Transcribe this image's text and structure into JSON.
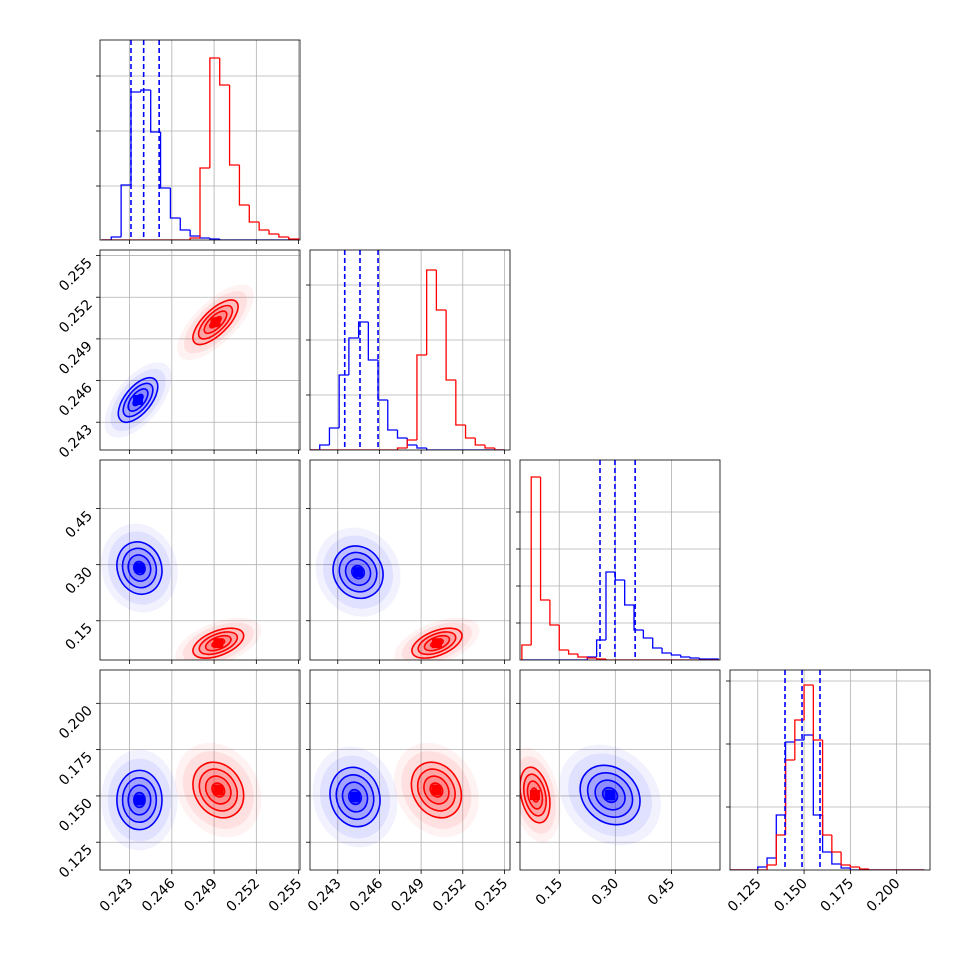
{
  "chart_data": [
    {
      "type": "histogram",
      "bins": [
        0.241,
        0.2417,
        0.2424,
        0.2431,
        0.2438,
        0.2445,
        0.2452,
        0.2459,
        0.2466,
        0.2473,
        0.248,
        0.2487,
        0.2494,
        0.2501,
        0.2508,
        0.2515,
        0.2522,
        0.2529,
        0.2536,
        0.2543,
        0.255
      ],
      "series": [
        {
          "color": "#0000ff",
          "values": [
            0,
            3,
            55,
            148,
            150,
            108,
            52,
            22,
            10,
            4,
            2,
            1,
            0,
            0,
            0,
            0,
            0,
            0,
            0,
            0
          ]
        },
        {
          "color": "#ff0000",
          "values": [
            0,
            0,
            0,
            0,
            0,
            0,
            0,
            0,
            0,
            2,
            72,
            182,
            155,
            75,
            35,
            18,
            10,
            6,
            3,
            1
          ]
        }
      ],
      "quantiles": [
        0.2431,
        0.244,
        0.2451
      ],
      "quantile_color": "#0000ff",
      "xlim": [
        0.2409,
        0.2551
      ],
      "xticks": [
        0.243,
        0.246,
        0.249,
        0.252,
        0.255
      ],
      "ylim": [
        0,
        200
      ],
      "yticks": [
        54,
        109,
        164
      ],
      "grid": true,
      "show_xtick_labels": false,
      "show_ytick_labels": false
    },
    {
      "type": "contour",
      "levels": [
        0.5,
        1,
        1.5,
        2
      ],
      "series": [
        {
          "color": "#0000ff",
          "center": [
            0.2436,
            0.2446
          ],
          "sigma": [
            0.0007,
            0.0008
          ],
          "corr": 0.6
        },
        {
          "color": "#ff0000",
          "center": [
            0.2491,
            0.2502
          ],
          "sigma": [
            0.0008,
            0.0008
          ],
          "corr": 0.7
        }
      ],
      "xlim": [
        0.2409,
        0.2551
      ],
      "xticks": [
        0.243,
        0.246,
        0.249,
        0.252,
        0.255
      ],
      "ylim": [
        0.241,
        0.2554
      ],
      "yticks": [
        0.243,
        0.246,
        0.249,
        0.252,
        0.255
      ],
      "grid": true,
      "show_xtick_labels": false,
      "show_ytick_labels": true
    },
    {
      "type": "histogram",
      "bins": [
        0.241,
        0.2417,
        0.2424,
        0.2431,
        0.2438,
        0.2445,
        0.2452,
        0.2459,
        0.2466,
        0.2473,
        0.248,
        0.2487,
        0.2494,
        0.2501,
        0.2508,
        0.2515,
        0.2522,
        0.2529,
        0.2536,
        0.2543,
        0.255
      ],
      "series": [
        {
          "color": "#0000ff",
          "values": [
            0,
            5,
            22,
            75,
            112,
            128,
            90,
            50,
            20,
            12,
            5,
            2,
            0,
            0,
            0,
            0,
            0,
            0,
            0,
            0
          ]
        },
        {
          "color": "#ff0000",
          "values": [
            0,
            0,
            0,
            0,
            0,
            0,
            0,
            0,
            0,
            2,
            10,
            95,
            180,
            140,
            70,
            25,
            12,
            5,
            2,
            0
          ]
        }
      ],
      "quantiles": [
        0.2435,
        0.2446,
        0.2459
      ],
      "quantile_color": "#0000ff",
      "xlim": [
        0.241,
        0.2554
      ],
      "xticks": [
        0.243,
        0.246,
        0.249,
        0.252,
        0.255
      ],
      "ylim": [
        0,
        200
      ],
      "yticks": [
        55,
        110,
        165
      ],
      "grid": true,
      "show_xtick_labels": false,
      "show_ytick_labels": false
    },
    {
      "type": "contour",
      "levels": [
        0.5,
        1,
        1.5,
        2
      ],
      "series": [
        {
          "color": "#0000ff",
          "center": [
            0.2437,
            0.291
          ],
          "sigma": [
            0.0008,
            0.035
          ],
          "corr": -0.1
        },
        {
          "color": "#ff0000",
          "center": [
            0.2493,
            0.09
          ],
          "sigma": [
            0.0009,
            0.02
          ],
          "corr": 0.5
        }
      ],
      "xlim": [
        0.2409,
        0.2551
      ],
      "xticks": [
        0.243,
        0.246,
        0.249,
        0.252,
        0.255
      ],
      "ylim": [
        0.045,
        0.58
      ],
      "yticks": [
        0.15,
        {
          "value": 0.3,
          "label": "0.30"
        },
        0.45
      ],
      "grid": true,
      "show_xtick_labels": false,
      "show_ytick_labels": true
    },
    {
      "type": "contour",
      "levels": [
        0.5,
        1,
        1.5,
        2
      ],
      "series": [
        {
          "color": "#0000ff",
          "center": [
            0.24446,
            0.28
          ],
          "sigma": [
            0.0009,
            0.035
          ],
          "corr": -0.1
        },
        {
          "color": "#ff0000",
          "center": [
            0.25014,
            0.09
          ],
          "sigma": [
            0.0009,
            0.02
          ],
          "corr": 0.5
        }
      ],
      "xlim": [
        0.241,
        0.2554
      ],
      "xticks": [
        0.243,
        0.246,
        0.249,
        0.252,
        0.255
      ],
      "ylim": [
        0.045,
        0.58
      ],
      "yticks": [
        0.15,
        {
          "value": 0.3,
          "label": "0.30"
        },
        0.45
      ],
      "grid": true,
      "show_xtick_labels": false,
      "show_ytick_labels": false
    },
    {
      "type": "histogram",
      "bins": [
        0.05,
        0.075,
        0.1,
        0.125,
        0.15,
        0.175,
        0.2,
        0.225,
        0.25,
        0.275,
        0.3,
        0.325,
        0.35,
        0.375,
        0.4,
        0.425,
        0.45,
        0.475,
        0.5,
        0.525,
        0.55,
        0.575
      ],
      "series": [
        {
          "color": "#0000ff",
          "values": [
            0,
            0,
            0,
            0,
            0,
            0,
            0,
            3,
            20,
            88,
            80,
            55,
            30,
            22,
            12,
            7,
            5,
            3,
            2,
            1,
            1
          ]
        },
        {
          "color": "#ff0000",
          "values": [
            15,
            183,
            60,
            35,
            10,
            6,
            3,
            2,
            1,
            0,
            0,
            0,
            0,
            0,
            0,
            0,
            0,
            0,
            0,
            0,
            0
          ]
        }
      ],
      "quantiles": [
        0.259,
        0.299,
        0.353
      ],
      "quantile_color": "#0000ff",
      "xlim": [
        0.045,
        0.58
      ],
      "xticks": [
        0.15,
        {
          "value": 0.3,
          "label": "0.30"
        },
        0.45
      ],
      "ylim": [
        0,
        200
      ],
      "yticks": [
        37,
        74,
        111,
        148
      ],
      "grid": true,
      "show_xtick_labels": false,
      "show_ytick_labels": false
    },
    {
      "type": "contour",
      "levels": [
        0.5,
        1,
        1.5,
        2
      ],
      "series": [
        {
          "color": "#0000ff",
          "center": [
            0.2437,
            0.1478
          ],
          "sigma": [
            0.0008,
            0.008
          ],
          "corr": 0
        },
        {
          "color": "#ff0000",
          "center": [
            0.2493,
            0.1532
          ],
          "sigma": [
            0.0009,
            0.0075
          ],
          "corr": -0.2
        }
      ],
      "xlim": [
        0.2409,
        0.2551
      ],
      "xticks": [
        0.243,
        0.246,
        0.249,
        0.252,
        0.255
      ],
      "ylim": [
        0.11,
        0.218
      ],
      "yticks": [
        0.125,
        {
          "value": 0.15,
          "label": "0.150"
        },
        0.175,
        {
          "value": 0.2,
          "label": "0.200"
        }
      ],
      "grid": true,
      "show_xtick_labels": true,
      "show_ytick_labels": true
    },
    {
      "type": "contour",
      "levels": [
        0.5,
        1,
        1.5,
        2
      ],
      "series": [
        {
          "color": "#0000ff",
          "center": [
            0.24424,
            0.1494
          ],
          "sigma": [
            0.0009,
            0.008
          ],
          "corr": -0.1
        },
        {
          "color": "#ff0000",
          "center": [
            0.2501,
            0.1532
          ],
          "sigma": [
            0.0009,
            0.0075
          ],
          "corr": -0.2
        }
      ],
      "xlim": [
        0.241,
        0.2554
      ],
      "xticks": [
        0.243,
        0.246,
        0.249,
        0.252,
        0.255
      ],
      "ylim": [
        0.11,
        0.218
      ],
      "yticks": [
        0.125,
        {
          "value": 0.15,
          "label": "0.150"
        },
        0.175,
        {
          "value": 0.2,
          "label": "0.200"
        }
      ],
      "grid": true,
      "show_xtick_labels": true,
      "show_ytick_labels": false
    },
    {
      "type": "contour",
      "levels": [
        0.5,
        1,
        1.5,
        2
      ],
      "series": [
        {
          "color": "#ff0000",
          "center": [
            0.085,
            0.1505
          ],
          "sigma": [
            0.02,
            0.0075
          ],
          "corr": -0.3
        },
        {
          "color": "#0000ff",
          "center": [
            0.286,
            0.1505
          ],
          "sigma": [
            0.04,
            0.008
          ],
          "corr": -0.2
        }
      ],
      "xlim": [
        0.045,
        0.58
      ],
      "xticks": [
        0.15,
        {
          "value": 0.3,
          "label": "0.30"
        },
        0.45
      ],
      "ylim": [
        0.11,
        0.218
      ],
      "yticks": [
        0.125,
        {
          "value": 0.15,
          "label": "0.150"
        },
        0.175,
        {
          "value": 0.2,
          "label": "0.200"
        }
      ],
      "grid": true,
      "show_xtick_labels": true,
      "show_ytick_labels": false
    },
    {
      "type": "histogram",
      "bins": [
        0.11,
        0.115,
        0.12,
        0.125,
        0.13,
        0.135,
        0.14,
        0.145,
        0.15,
        0.155,
        0.16,
        0.165,
        0.17,
        0.175,
        0.18,
        0.185,
        0.19,
        0.195,
        0.2,
        0.205,
        0.21,
        0.215
      ],
      "series": [
        {
          "color": "#0000ff",
          "values": [
            0,
            0,
            0,
            3,
            12,
            55,
            128,
            130,
            135,
            55,
            18,
            6,
            2,
            0,
            0,
            0,
            0,
            0,
            0,
            0,
            0
          ]
        },
        {
          "color": "#ff0000",
          "values": [
            0,
            0,
            0,
            0,
            5,
            35,
            110,
            150,
            185,
            130,
            35,
            18,
            5,
            3,
            1,
            0,
            0,
            0,
            0,
            0,
            0
          ]
        }
      ],
      "quantiles": [
        0.1397,
        0.1489,
        0.1586
      ],
      "quantile_color": "#0000ff",
      "xlim": [
        0.11,
        0.218
      ],
      "xticks": [
        0.125,
        {
          "value": 0.15,
          "label": "0.150"
        },
        0.175,
        {
          "value": 0.2,
          "label": "0.200"
        }
      ],
      "ylim": [
        0,
        200
      ],
      "yticks": [
        63,
        126,
        189
      ],
      "grid": true,
      "show_xtick_labels": true,
      "show_ytick_labels": false
    }
  ]
}
